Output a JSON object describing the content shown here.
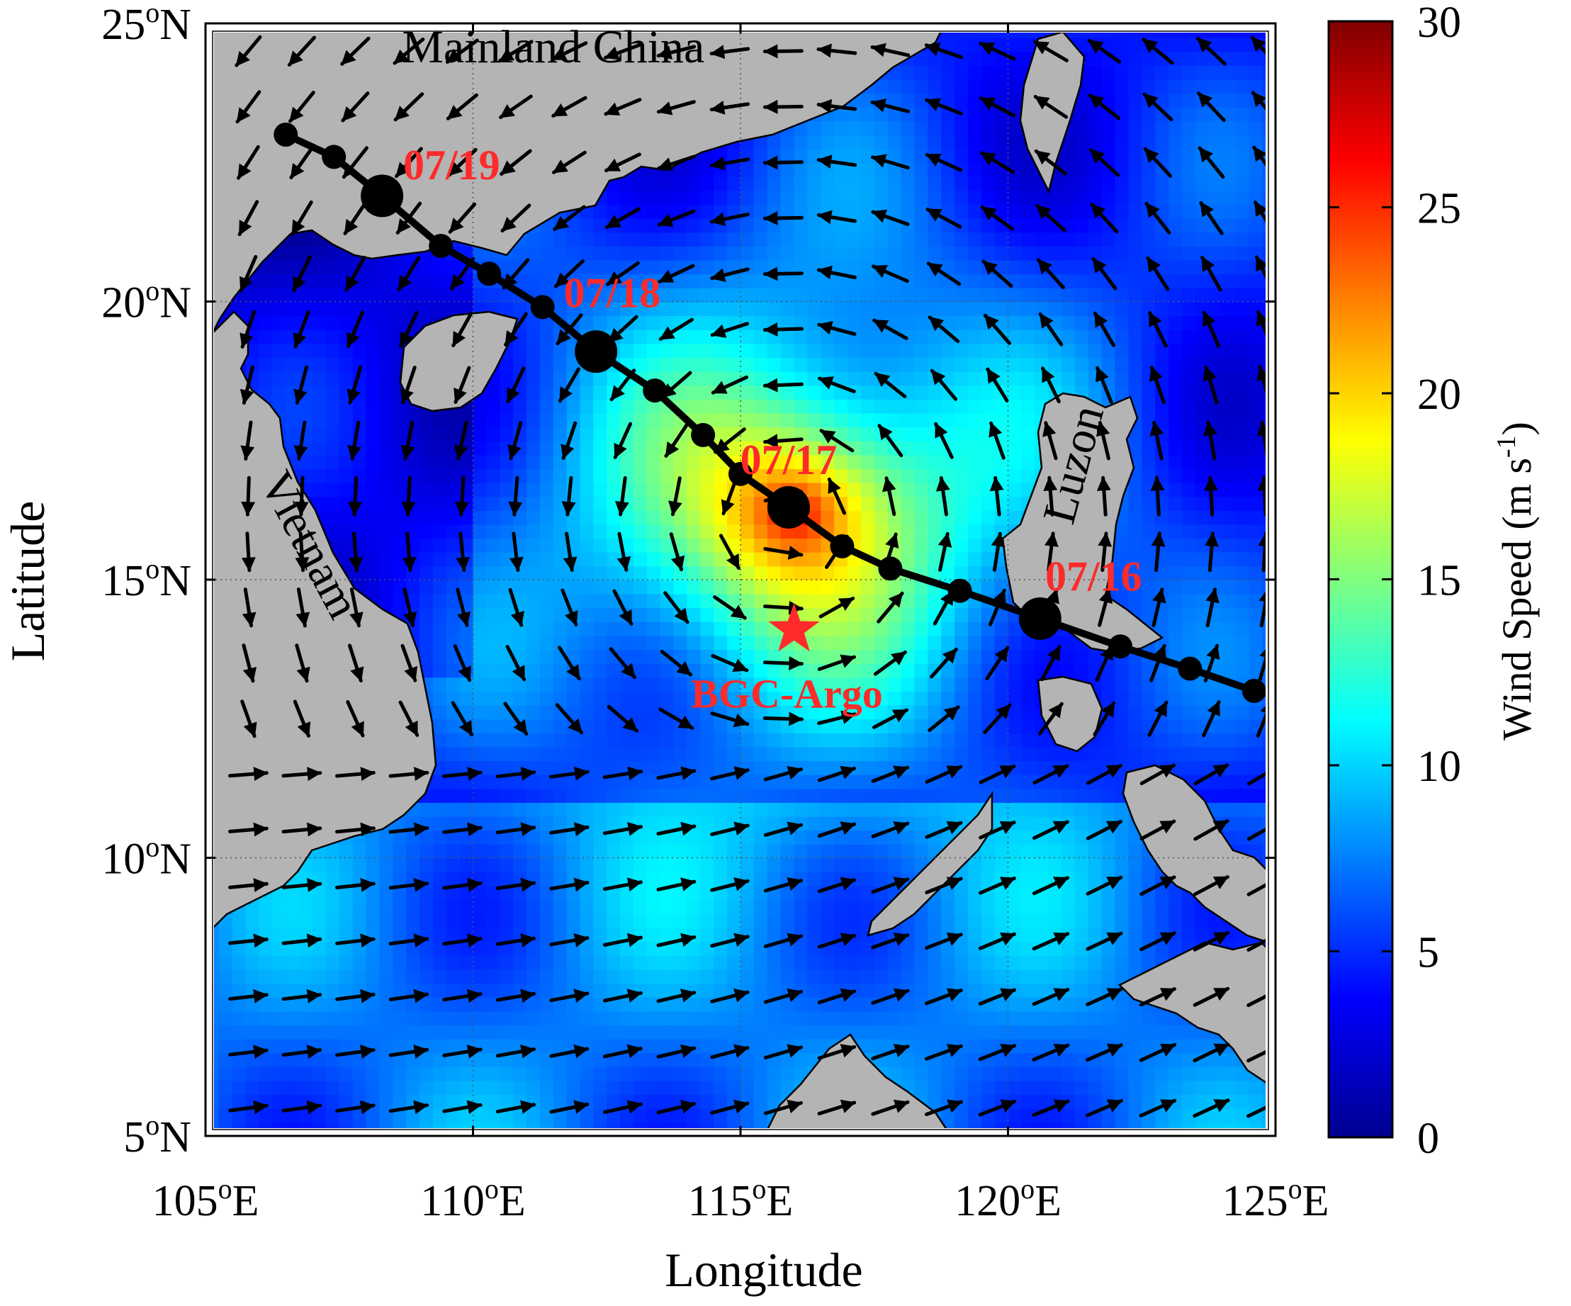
{
  "map": {
    "type": "heatmap",
    "x_axis": {
      "label": "Longitude",
      "range": [
        105,
        125
      ],
      "ticks": [
        {
          "value": 105,
          "num": "105",
          "unit": "o",
          "hem": "E"
        },
        {
          "value": 110,
          "num": "110",
          "unit": "o",
          "hem": "E"
        },
        {
          "value": 115,
          "num": "115",
          "unit": "o",
          "hem": "E"
        },
        {
          "value": 120,
          "num": "120",
          "unit": "o",
          "hem": "E"
        },
        {
          "value": 125,
          "num": "125",
          "unit": "o",
          "hem": "E"
        }
      ]
    },
    "y_axis": {
      "label": "Latitude",
      "range": [
        5,
        25
      ],
      "ticks": [
        {
          "value": 5,
          "num": "5",
          "unit": "o",
          "hem": "N"
        },
        {
          "value": 10,
          "num": "10",
          "unit": "o",
          "hem": "N"
        },
        {
          "value": 15,
          "num": "15",
          "unit": "o",
          "hem": "N"
        },
        {
          "value": 20,
          "num": "20",
          "unit": "o",
          "hem": "N"
        },
        {
          "value": 25,
          "num": "25",
          "unit": "o",
          "hem": "N"
        }
      ]
    },
    "grid": true,
    "colorbar": {
      "label_main": "Wind Speed (m s",
      "label_sup": "-1",
      "label_end": ")",
      "range": [
        0,
        30
      ],
      "ticks": [
        "0",
        "5",
        "10",
        "15",
        "20",
        "25",
        "30"
      ],
      "colormap": "jet"
    },
    "place_labels": [
      {
        "text": "Mainland China",
        "lon": 111.5,
        "lat": 24.3
      },
      {
        "text": "Vietnam",
        "lon": 106.7,
        "lat": 15.5,
        "rotate": 62
      },
      {
        "text": "Luzon",
        "lon": 121.5,
        "lat": 17.0,
        "rotate": -75
      }
    ],
    "track": {
      "color": "#000000",
      "points": [
        {
          "lon": 106.5,
          "lat": 23.0
        },
        {
          "lon": 107.4,
          "lat": 22.6
        },
        {
          "lon": 108.3,
          "lat": 21.9,
          "major": true
        },
        {
          "lon": 109.4,
          "lat": 21.0
        },
        {
          "lon": 110.3,
          "lat": 20.5
        },
        {
          "lon": 111.3,
          "lat": 19.9
        },
        {
          "lon": 112.3,
          "lat": 19.1,
          "major": true
        },
        {
          "lon": 113.4,
          "lat": 18.4
        },
        {
          "lon": 114.3,
          "lat": 17.6
        },
        {
          "lon": 115.0,
          "lat": 16.9
        },
        {
          "lon": 115.9,
          "lat": 16.3,
          "major": true
        },
        {
          "lon": 116.9,
          "lat": 15.6
        },
        {
          "lon": 117.8,
          "lat": 15.2
        },
        {
          "lon": 119.1,
          "lat": 14.8
        },
        {
          "lon": 120.6,
          "lat": 14.3,
          "major": true
        },
        {
          "lon": 122.1,
          "lat": 13.8
        },
        {
          "lon": 123.4,
          "lat": 13.4
        },
        {
          "lon": 124.6,
          "lat": 13.0
        },
        {
          "lon": 125.1,
          "lat": 12.9
        }
      ]
    },
    "date_labels": [
      {
        "text": "07/19",
        "lon": 109.6,
        "lat": 22.2
      },
      {
        "text": "07/18",
        "lon": 112.6,
        "lat": 19.9
      },
      {
        "text": "07/17",
        "lon": 115.9,
        "lat": 16.9
      },
      {
        "text": "07/16",
        "lon": 121.6,
        "lat": 14.8
      }
    ],
    "float": {
      "label": "BGC-Argo",
      "lon": 116.0,
      "lat": 14.1,
      "color": "#ff2a2a"
    },
    "storm_center": {
      "lon": 115.9,
      "lat": 16.1,
      "max_speed": 24
    }
  }
}
